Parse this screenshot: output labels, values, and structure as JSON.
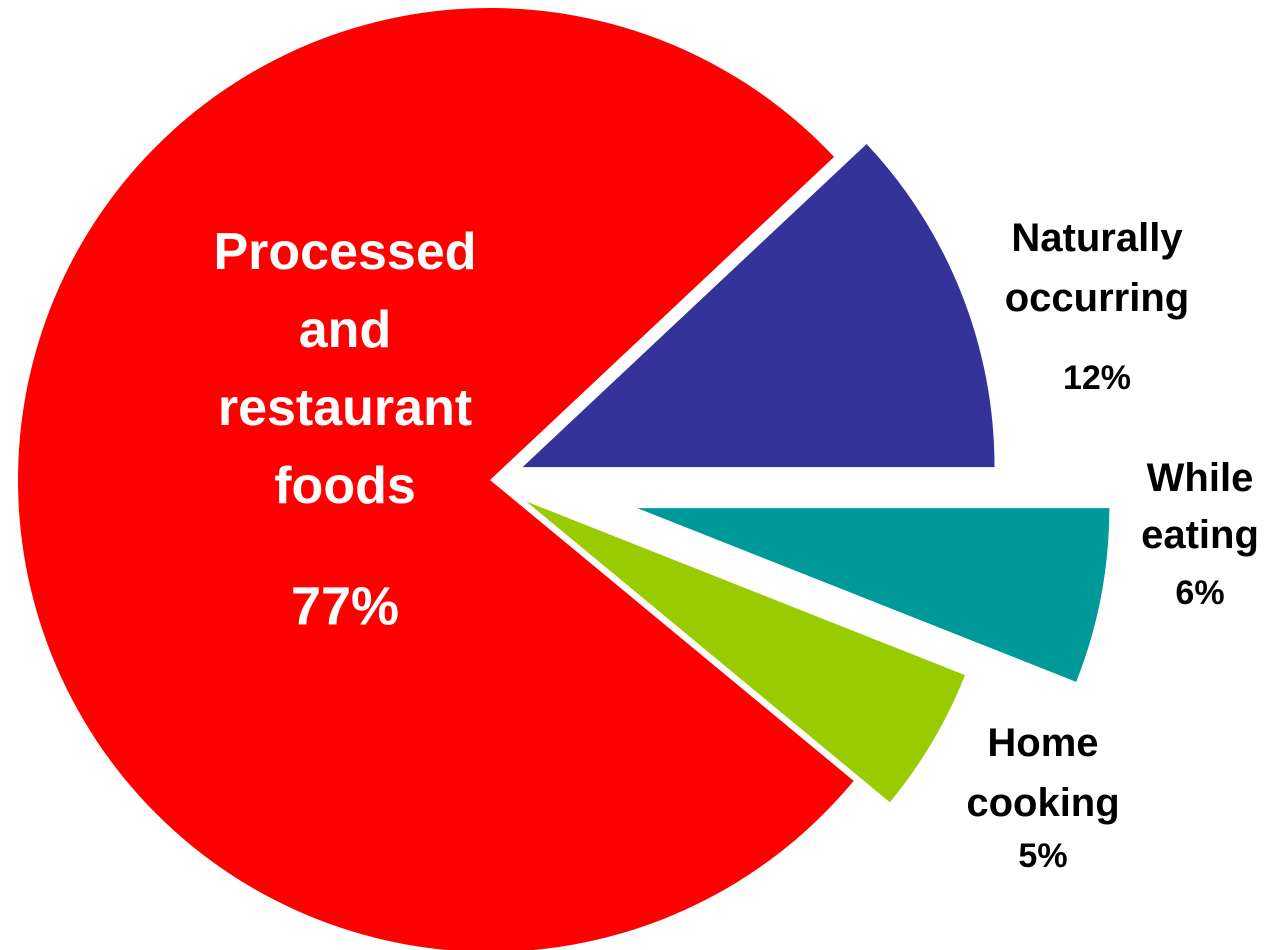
{
  "chart_data": {
    "type": "pie",
    "categories": [
      "Processed and restaurant foods",
      "Naturally occurring",
      "While eating",
      "Home cooking"
    ],
    "values": [
      77,
      12,
      6,
      5
    ],
    "value_labels": [
      "77%",
      "12%",
      "6%",
      "5%"
    ],
    "colors": [
      "#ff0000",
      "#333399",
      "#009999",
      "#99cc00"
    ]
  }
}
